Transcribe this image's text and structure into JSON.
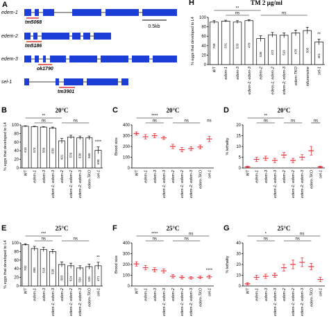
{
  "panel_a": {
    "label": "A",
    "scale_bar": "0.5kb",
    "genes": [
      {
        "name": "edem-1",
        "allele": "tm5068"
      },
      {
        "name": "edem-2",
        "allele": "tm5186"
      },
      {
        "name": "edem-3",
        "allele": "ok1790"
      },
      {
        "name": "sel-1",
        "allele": "tm3901"
      }
    ]
  },
  "chart_data": [
    {
      "type": "bar",
      "panel": "H",
      "title": "TM 2 µg/ml",
      "ylabel": "% eggs that developed to L4",
      "categories": [
        "WT",
        "edem-1",
        "edem-3",
        "edem-1; edem-3",
        "edem-2",
        "edem-1; edem-2",
        "edem-2; edem-3",
        "edem-TKO",
        "kifunensine",
        "sel-1"
      ],
      "values": [
        90,
        92,
        90,
        93,
        55,
        63,
        62,
        67,
        72,
        48
      ],
      "errors": [
        3,
        2,
        3,
        2,
        6,
        5,
        5,
        6,
        7,
        6
      ],
      "n_labels": [
        "799",
        "531",
        "533",
        "470",
        "536",
        "472",
        "519",
        "476",
        "505",
        "461"
      ],
      "annotations": [
        "**",
        "ns",
        "ns",
        "**"
      ],
      "color": "#ffffff",
      "ylim": [
        0,
        100
      ],
      "yticks": [
        0,
        20,
        40,
        60,
        80,
        100
      ]
    },
    {
      "type": "bar",
      "panel": "B",
      "title": "20°C",
      "ylabel": "% eggs that developed to L4",
      "categories": [
        "WT",
        "edem-1",
        "edem-3",
        "edem-1; edem-3",
        "edem-2",
        "edem-1; edem-2",
        "edem-2; edem-3",
        "edem-TKO",
        "sel-1"
      ],
      "values": [
        97,
        96,
        95,
        93,
        63,
        72,
        70,
        70,
        41
      ],
      "errors": [
        1,
        1,
        1,
        2,
        6,
        4,
        4,
        4,
        8
      ],
      "n_labels": [
        "615",
        "573",
        "550",
        "639",
        "491",
        "570",
        "636",
        "565",
        "695"
      ],
      "annotations": [
        "**",
        "ns",
        "ns",
        "****"
      ],
      "color": "#ffffff",
      "ylim": [
        0,
        100
      ],
      "yticks": [
        0,
        20,
        40,
        60,
        80,
        100
      ]
    },
    {
      "type": "dot",
      "panel": "C",
      "title": "20°C",
      "ylabel": "Brood size",
      "categories": [
        "WT",
        "edem-1",
        "edem-3",
        "edem-1; edem-3",
        "edem-2",
        "edem-1; edem-2",
        "edem-2; edem-3",
        "edem-TKO",
        "sel-1"
      ],
      "values": [
        320,
        290,
        300,
        280,
        200,
        170,
        180,
        195,
        270
      ],
      "errors": [
        15,
        20,
        20,
        15,
        20,
        20,
        18,
        18,
        25
      ],
      "annotations": [
        "****",
        "ns",
        "ns",
        "ns"
      ],
      "color": "#e8303a",
      "ylim": [
        0,
        400
      ],
      "yticks": [
        0,
        100,
        200,
        300,
        400
      ]
    },
    {
      "type": "dot",
      "panel": "D",
      "title": "20°C",
      "ylabel": "% lethality",
      "categories": [
        "WT",
        "edem-1",
        "edem-3",
        "edem-1; edem-3",
        "edem-2",
        "edem-1; edem-2",
        "edem-2; edem-3",
        "edem-TKO",
        "sel-1"
      ],
      "values": [
        0.5,
        4,
        4.5,
        3.5,
        6,
        3.5,
        5,
        8,
        0.5
      ],
      "errors": [
        0.3,
        1,
        1,
        1,
        1.2,
        1,
        1.2,
        2,
        0.3
      ],
      "annotations": [
        "**",
        "ns",
        "ns",
        "ns"
      ],
      "color": "#e8303a",
      "ylim": [
        0,
        20
      ],
      "yticks": [
        0,
        5,
        10,
        15,
        20
      ]
    },
    {
      "type": "bar",
      "panel": "E",
      "title": "25°C",
      "ylabel": "% eggs that developed to L4",
      "categories": [
        "WT",
        "edem-1",
        "edem-3",
        "edem-1; edem-3",
        "edem-2",
        "edem-1; edem-2",
        "edem-2; edem-3",
        "edem-TKO",
        "sel-1"
      ],
      "values": [
        96,
        87,
        85,
        80,
        50,
        47,
        42,
        45,
        47
      ],
      "errors": [
        2,
        5,
        5,
        5,
        6,
        6,
        5,
        6,
        8
      ],
      "n_labels": [
        "702",
        "606",
        "518",
        "528",
        "583",
        "624",
        "554",
        "526",
        "471"
      ],
      "annotations": [
        "***",
        "ns",
        "ns",
        "**"
      ],
      "color": "#ffffff",
      "ylim": [
        0,
        100
      ],
      "yticks": [
        0,
        20,
        40,
        60,
        80,
        100
      ]
    },
    {
      "type": "dot",
      "panel": "F",
      "title": "25°C",
      "ylabel": "Brood size",
      "categories": [
        "WT",
        "edem-1",
        "edem-3",
        "edem-1; edem-3",
        "edem-2",
        "edem-1; edem-2",
        "edem-2; edem-3",
        "edem-TKO",
        "sel-1"
      ],
      "values": [
        205,
        170,
        150,
        140,
        90,
        80,
        75,
        80,
        85
      ],
      "errors": [
        20,
        20,
        20,
        18,
        15,
        15,
        12,
        12,
        15
      ],
      "annotations": [
        "****",
        "ns",
        "ns",
        "ns",
        "****"
      ],
      "color": "#e8303a",
      "ylim": [
        0,
        400
      ],
      "yticks": [
        0,
        100,
        200,
        300,
        400
      ]
    },
    {
      "type": "dot",
      "panel": "G",
      "title": "25°C",
      "ylabel": "% lethality",
      "categories": [
        "WT",
        "edem-1",
        "edem-3",
        "edem-1; edem-3",
        "edem-2",
        "edem-1; edem-2",
        "edem-2; edem-3",
        "edem-TKO",
        "sel-1"
      ],
      "values": [
        2,
        8,
        9,
        10,
        17,
        20,
        22,
        18,
        6
      ],
      "errors": [
        1,
        2,
        2,
        2,
        3,
        4,
        4,
        3,
        2
      ],
      "annotations": [
        "*",
        "ns",
        "ns",
        "ns"
      ],
      "color": "#e8303a",
      "ylim": [
        0,
        40
      ],
      "yticks": [
        0,
        10,
        20,
        30,
        40
      ]
    }
  ]
}
